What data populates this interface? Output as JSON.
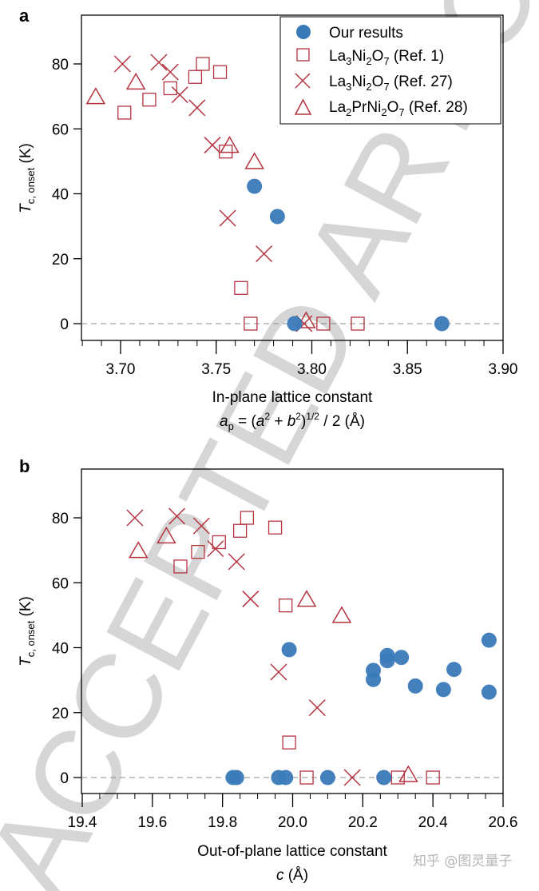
{
  "figure": {
    "watermark": "ACCEPTED ARTICLE",
    "credit": "知乎 @图灵量子",
    "colors": {
      "ours": "#3a7ab8",
      "ref": "#b5323f",
      "zero_line": "#888888"
    }
  },
  "legend": {
    "items": [
      {
        "marker": "circle",
        "label": "Our results"
      },
      {
        "marker": "square",
        "label_main": "La",
        "sub1": "3",
        "mid1": "Ni",
        "sub2": "2",
        "mid2": "O",
        "sub3": "7",
        "tail": " (Ref. 1)"
      },
      {
        "marker": "cross",
        "label_main": "La",
        "sub1": "3",
        "mid1": "Ni",
        "sub2": "2",
        "mid2": "O",
        "sub3": "7",
        "tail": " (Ref. 27)"
      },
      {
        "marker": "triangle",
        "label_main": "La",
        "sub1": "2",
        "mid1": "PrNi",
        "sub2": "2",
        "mid2": "O",
        "sub3": "7",
        "tail": " (Ref. 28)"
      }
    ]
  },
  "chart_data": [
    {
      "panel": "a",
      "type": "scatter",
      "title": "",
      "xlabel": "In-plane lattice constant",
      "xlabel2": "a_p = (a^2 + b^2)^(1/2) / 2 (Å)",
      "ylabel": "T_c, onset (K)",
      "xlim": [
        3.68,
        3.9
      ],
      "ylim": [
        -5,
        95
      ],
      "xticks": [
        3.7,
        3.75,
        3.8,
        3.85,
        3.9
      ],
      "xtick_labels": [
        "3.70",
        "3.75",
        "3.80",
        "3.85",
        "3.90"
      ],
      "yticks": [
        0,
        20,
        40,
        60,
        80
      ],
      "ytick_labels": [
        "0",
        "20",
        "40",
        "60",
        "80"
      ],
      "grid": false,
      "zero_line": "dashed",
      "legend_position": "upper right",
      "series": [
        {
          "name": "Our results",
          "marker": "circle",
          "x": [
            3.77,
            3.782,
            3.791,
            3.868
          ],
          "y": [
            42.3,
            33.0,
            0,
            0
          ]
        },
        {
          "name": "La3Ni2O7 (Ref. 1)",
          "marker": "square",
          "x": [
            3.702,
            3.715,
            3.726,
            3.739,
            3.743,
            3.752,
            3.755,
            3.763,
            3.768,
            3.806,
            3.824
          ],
          "y": [
            65,
            69,
            72.5,
            76,
            80,
            77.5,
            53,
            11,
            0,
            0,
            0
          ]
        },
        {
          "name": "La3Ni2O7 (Ref. 27)",
          "marker": "cross",
          "x": [
            3.701,
            3.72,
            3.726,
            3.731,
            3.74,
            3.748,
            3.756,
            3.775,
            3.796
          ],
          "y": [
            80,
            80.5,
            77.5,
            70.5,
            66.5,
            55,
            32.5,
            21.5,
            0
          ]
        },
        {
          "name": "La2PrNi2O7 (Ref. 28)",
          "marker": "triangle",
          "x": [
            3.687,
            3.708,
            3.757,
            3.77,
            3.797
          ],
          "y": [
            69.5,
            74,
            54.5,
            49.5,
            0.5
          ]
        }
      ]
    },
    {
      "panel": "b",
      "type": "scatter",
      "title": "",
      "xlabel": "Out-of-plane lattice constant",
      "xlabel2": "c (Å)",
      "ylabel": "T_c, onset (K)",
      "xlim": [
        19.4,
        20.6
      ],
      "ylim": [
        -5,
        95
      ],
      "xticks": [
        19.4,
        19.6,
        19.8,
        20.0,
        20.2,
        20.4,
        20.6
      ],
      "xtick_labels": [
        "19.4",
        "19.6",
        "19.8",
        "20.0",
        "20.2",
        "20.4",
        "20.6"
      ],
      "yticks": [
        0,
        20,
        40,
        60,
        80
      ],
      "ytick_labels": [
        "0",
        "20",
        "40",
        "60",
        "80"
      ],
      "grid": false,
      "zero_line": "dashed",
      "series": [
        {
          "name": "Our results",
          "marker": "circle",
          "x": [
            19.99,
            20.23,
            20.23,
            20.27,
            20.27,
            20.31,
            20.35,
            20.43,
            20.46,
            20.56,
            20.56,
            19.83,
            19.84,
            19.96,
            19.98,
            20.1,
            20.26
          ],
          "y": [
            39.4,
            33,
            30.2,
            37.6,
            36,
            37,
            28.2,
            27.1,
            33.3,
            42.3,
            26.3,
            0,
            0,
            0,
            0,
            0,
            0
          ]
        },
        {
          "name": "La3Ni2O7 (Ref. 1)",
          "marker": "square",
          "x": [
            19.68,
            19.73,
            19.79,
            19.85,
            19.87,
            19.95,
            19.98,
            19.99,
            20.04,
            20.3,
            20.4
          ],
          "y": [
            65,
            69.5,
            72.5,
            76,
            80,
            77,
            53,
            10.8,
            0,
            0,
            0
          ]
        },
        {
          "name": "La3Ni2O7 (Ref. 27)",
          "marker": "cross",
          "x": [
            19.55,
            19.67,
            19.74,
            19.78,
            19.84,
            19.88,
            19.96,
            20.07,
            20.17
          ],
          "y": [
            80,
            80.5,
            77.5,
            70.5,
            66.5,
            55,
            32.5,
            21.5,
            0
          ]
        },
        {
          "name": "La2PrNi2O7 (Ref. 28)",
          "marker": "triangle",
          "x": [
            19.56,
            19.64,
            20.04,
            20.14,
            20.33
          ],
          "y": [
            69.5,
            74,
            54.5,
            49.5,
            0.5
          ]
        }
      ]
    }
  ]
}
